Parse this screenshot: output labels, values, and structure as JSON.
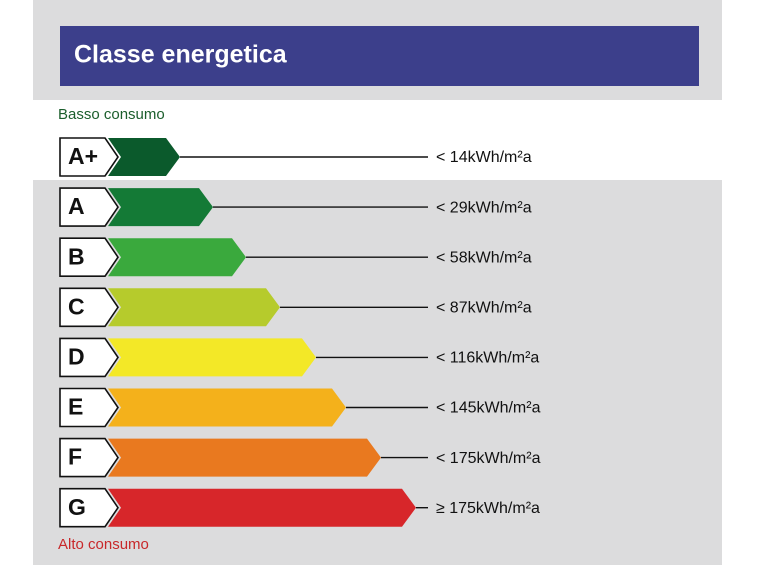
{
  "header": {
    "title": "Classe energetica"
  },
  "top_label": "Basso consumo",
  "bottom_label": "Alto consumo",
  "classes": [
    {
      "letter": "A+",
      "threshold": "< 14kWh/m²a",
      "color": "#0b5a2c"
    },
    {
      "letter": "A",
      "threshold": "< 29kWh/m²a",
      "color": "#147a36"
    },
    {
      "letter": "B",
      "threshold": "< 58kWh/m²a",
      "color": "#3aa93d"
    },
    {
      "letter": "C",
      "threshold": "< 87kWh/m²a",
      "color": "#b6cb2c"
    },
    {
      "letter": "D",
      "threshold": "< 116kWh/m²a",
      "color": "#f3e827"
    },
    {
      "letter": "E",
      "threshold": "< 145kWh/m²a",
      "color": "#f4b11b"
    },
    {
      "letter": "F",
      "threshold": "< 175kWh/m²a",
      "color": "#e9791f"
    },
    {
      "letter": "G",
      "threshold": "≥ 175kWh/m²a",
      "color": "#d7262a"
    }
  ]
}
